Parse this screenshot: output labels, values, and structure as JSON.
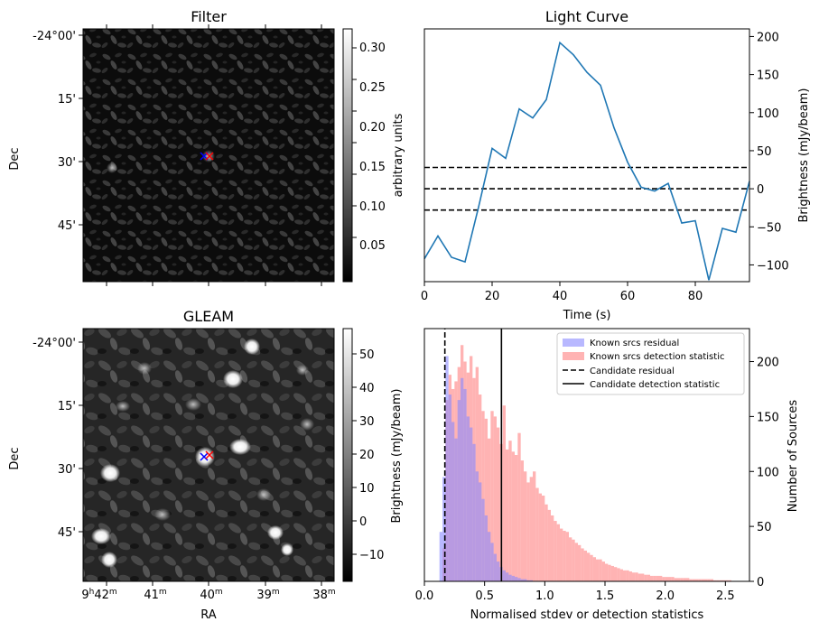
{
  "colors": {
    "curve": "#1f77b4",
    "known_residual": "#8888ff",
    "known_detection": "#ff8080",
    "axis": "#000000"
  },
  "filter_panel": {
    "title": "Filter",
    "ylabel": "Dec",
    "dec_ticks": [
      "-24°00'",
      "15'",
      "30'",
      "45'"
    ],
    "colorbar_label": "arbitrary units",
    "colorbar_ticks": [
      "0.30",
      "0.25",
      "0.20",
      "0.15",
      "0.10",
      "0.05"
    ]
  },
  "gleam_panel": {
    "title": "GLEAM",
    "ylabel": "Dec",
    "xlabel": "RA",
    "dec_ticks": [
      "-24°00'",
      "15'",
      "30'",
      "45'"
    ],
    "ra_ticks": [
      {
        "h": "9",
        "hm": "h",
        "m": "42",
        "mm": "m"
      },
      {
        "h": "",
        "hm": "",
        "m": "41",
        "mm": "m"
      },
      {
        "h": "",
        "hm": "",
        "m": "40",
        "mm": "m"
      },
      {
        "h": "",
        "hm": "",
        "m": "39",
        "mm": "m"
      },
      {
        "h": "",
        "hm": "",
        "m": "38",
        "mm": "m"
      }
    ],
    "colorbar_label": "Brightness (mJy/beam)",
    "colorbar_ticks": [
      "50",
      "40",
      "30",
      "20",
      "10",
      "0",
      "−10"
    ]
  },
  "chart_data": [
    {
      "type": "line",
      "title": "Light Curve",
      "xlabel": "Time (s)",
      "ylabel": "Brightness (mJy/beam)",
      "xlim": [
        0,
        96
      ],
      "ylim": [
        -122,
        210
      ],
      "x_ticks": [
        "0",
        "20",
        "40",
        "60",
        "80"
      ],
      "y_ticks": [
        "200",
        "150",
        "100",
        "50",
        "0",
        "−50",
        "−100"
      ],
      "x": [
        0,
        4,
        8,
        12,
        16,
        20,
        24,
        28,
        32,
        36,
        40,
        44,
        48,
        52,
        56,
        60,
        64,
        68,
        72,
        76,
        80,
        84,
        88,
        92,
        96
      ],
      "y": [
        -92,
        -62,
        -90,
        -96,
        -24,
        53,
        40,
        105,
        93,
        117,
        192,
        176,
        153,
        136,
        80,
        35,
        2,
        -3,
        7,
        -45,
        -42,
        -120,
        -52,
        -57,
        10
      ],
      "hlines": [
        28,
        0,
        -28
      ]
    },
    {
      "type": "bar",
      "xlabel": "Normalised stdev or detection statistics",
      "ylabel_left": "Brightness (mJy/beam)",
      "ylabel_right": "Number of Sources",
      "xlim": [
        0,
        2.7
      ],
      "ylim": [
        0,
        230
      ],
      "x_ticks": [
        "0.0",
        "0.5",
        "1.0",
        "1.5",
        "2.0",
        "2.5"
      ],
      "y_ticks": [
        "200",
        "150",
        "100",
        "50",
        "0"
      ],
      "legend_position": "top-right",
      "bin_start": 0.0,
      "bin_width": 0.025,
      "series": [
        {
          "name": "Known srcs residual",
          "values": [
            0,
            0,
            0,
            0,
            0,
            45,
            95,
            205,
            170,
            145,
            130,
            165,
            185,
            175,
            150,
            140,
            125,
            100,
            90,
            75,
            60,
            45,
            35,
            25,
            18,
            13,
            10,
            8,
            6,
            5,
            4,
            3,
            2,
            2,
            1,
            1
          ]
        },
        {
          "name": "Known srcs detection statistic",
          "values": [
            0,
            0,
            0,
            0,
            0,
            0,
            30,
            165,
            188,
            175,
            182,
            195,
            215,
            200,
            190,
            205,
            185,
            195,
            170,
            155,
            148,
            130,
            155,
            150,
            140,
            125,
            160,
            120,
            128,
            118,
            115,
            135,
            110,
            100,
            90,
            95,
            100,
            85,
            80,
            78,
            70,
            65,
            60,
            55,
            52,
            48,
            46,
            45,
            40,
            38,
            35,
            33,
            30,
            28,
            26,
            24,
            22,
            20,
            20,
            18,
            16,
            15,
            14,
            13,
            12,
            11,
            10,
            10,
            9,
            8,
            8,
            7,
            7,
            6,
            6,
            5,
            5,
            5,
            5,
            4,
            4,
            4,
            4,
            3,
            3,
            3,
            3,
            3,
            2,
            2,
            2,
            2,
            2,
            2,
            2,
            2,
            1,
            1,
            1,
            1,
            1,
            1
          ]
        },
        {
          "name": "Candidate residual",
          "value": 0.17
        },
        {
          "name": "Candidate detection statistic",
          "value": 0.64
        }
      ]
    }
  ]
}
